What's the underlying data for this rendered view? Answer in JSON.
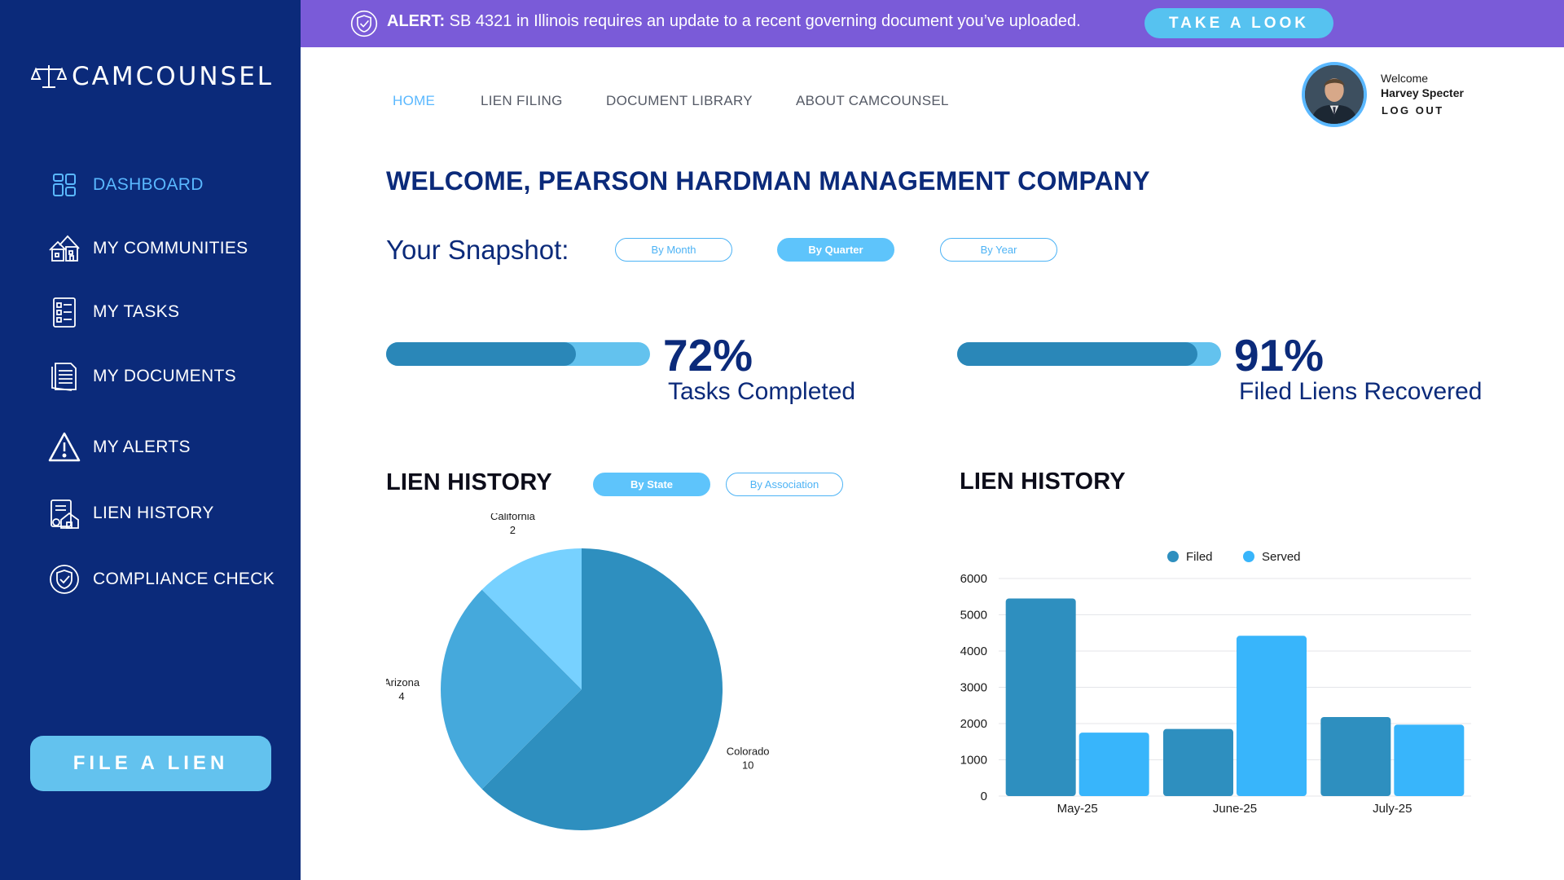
{
  "app": {
    "logo_text": "CAMCOUNSEL",
    "brand_colors": {
      "sidebar": "#0b2a7a",
      "accent": "#5ab8ff",
      "alert": "#7a5bd8"
    }
  },
  "alert": {
    "prefix": "ALERT:",
    "message": "SB 4321 in Illinois requires an update to a recent governing document you’ve uploaded.",
    "button": "TAKE A LOOK"
  },
  "sidebar": {
    "items": [
      {
        "label": "DASHBOARD",
        "icon": "dashboard-icon",
        "active": true
      },
      {
        "label": "MY COMMUNITIES",
        "icon": "communities-icon",
        "active": false
      },
      {
        "label": "MY TASKS",
        "icon": "tasks-icon",
        "active": false
      },
      {
        "label": "MY DOCUMENTS",
        "icon": "documents-icon",
        "active": false
      },
      {
        "label": "MY ALERTS",
        "icon": "alert-icon",
        "active": false
      },
      {
        "label": "LIEN HISTORY",
        "icon": "lien-history-icon",
        "active": false
      },
      {
        "label": "COMPLIANCE CHECK",
        "icon": "compliance-icon",
        "active": false
      }
    ],
    "cta": "FILE A LIEN"
  },
  "topnav": {
    "items": [
      {
        "label": "HOME",
        "active": true
      },
      {
        "label": "LIEN FILING",
        "active": false
      },
      {
        "label": "DOCUMENT LIBRARY",
        "active": false
      },
      {
        "label": "ABOUT CAMCOUNSEL",
        "active": false
      }
    ]
  },
  "user": {
    "welcome": "Welcome",
    "name": "Harvey Specter",
    "logout": "LOG OUT"
  },
  "main": {
    "title": "WELCOME, PEARSON HARDMAN MANAGEMENT COMPANY",
    "snapshot_label": "Your Snapshot:",
    "period_options": [
      {
        "label": "By Month",
        "active": false
      },
      {
        "label": "By Quarter",
        "active": true
      },
      {
        "label": "By Year",
        "active": false
      }
    ],
    "metrics": [
      {
        "value_text": "72%",
        "fraction": 0.72,
        "label": "Tasks Completed"
      },
      {
        "value_text": "91%",
        "fraction": 0.91,
        "label": "Filed Liens Recovered"
      }
    ],
    "lien_history_left": {
      "title": "LIEN HISTORY",
      "toggles": [
        {
          "label": "By State",
          "active": true
        },
        {
          "label": "By Association",
          "active": false
        }
      ]
    },
    "lien_history_right": {
      "title": "LIEN HISTORY"
    }
  },
  "chart_data": [
    {
      "type": "pie",
      "title": "",
      "slices": [
        {
          "label": "Colorado",
          "value": 10,
          "color": "#2e8fbf"
        },
        {
          "label": "Arizona",
          "value": 4,
          "color": "#45a9dc"
        },
        {
          "label": "California",
          "value": 2,
          "color": "#77d1ff"
        }
      ]
    },
    {
      "type": "bar",
      "title": "",
      "categories": [
        "May-25",
        "June-25",
        "July-25"
      ],
      "series": [
        {
          "name": "Filed",
          "values": [
            5450,
            1850,
            2180
          ],
          "color": "#2e8fbf"
        },
        {
          "name": "Served",
          "values": [
            1750,
            4420,
            1970
          ],
          "color": "#38b5fb"
        }
      ],
      "yticks": [
        "0",
        "1000",
        "2000",
        "3000",
        "4000",
        "5000",
        "6000"
      ],
      "ylim": [
        0,
        6000
      ],
      "grid": true,
      "legend": "top-center"
    }
  ]
}
